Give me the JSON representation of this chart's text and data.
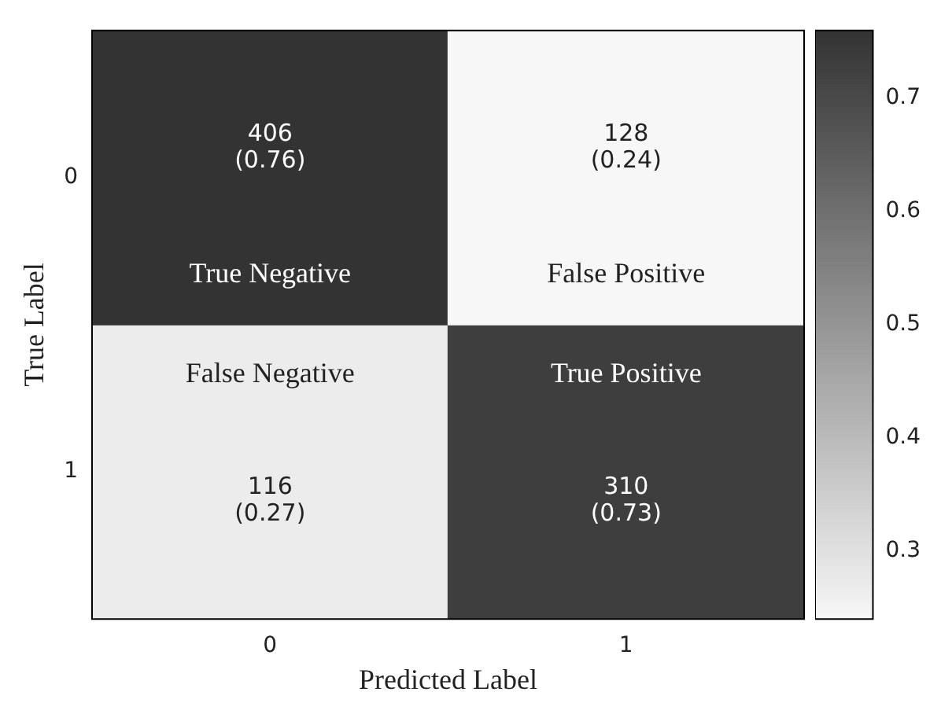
{
  "chart_data": {
    "type": "heatmap",
    "xlabel": "Predicted Label",
    "ylabel": "True Label",
    "categories": [
      "0",
      "1"
    ],
    "y_categories": [
      "0",
      "1"
    ],
    "cells": [
      [
        0.76,
        0.24
      ],
      [
        0.27,
        0.73
      ]
    ],
    "cell_labels": [
      [
        "406\n(0.76)",
        "128\n(0.24)"
      ],
      [
        "116\n(0.27)",
        "310\n(0.73)"
      ]
    ],
    "clim": [
      0.24,
      0.76
    ],
    "cticks": [
      0.3,
      0.4,
      0.5,
      0.6,
      0.7
    ],
    "annotations": [
      "True Negative",
      "False Positive",
      "False Negative",
      "True Positive"
    ]
  }
}
